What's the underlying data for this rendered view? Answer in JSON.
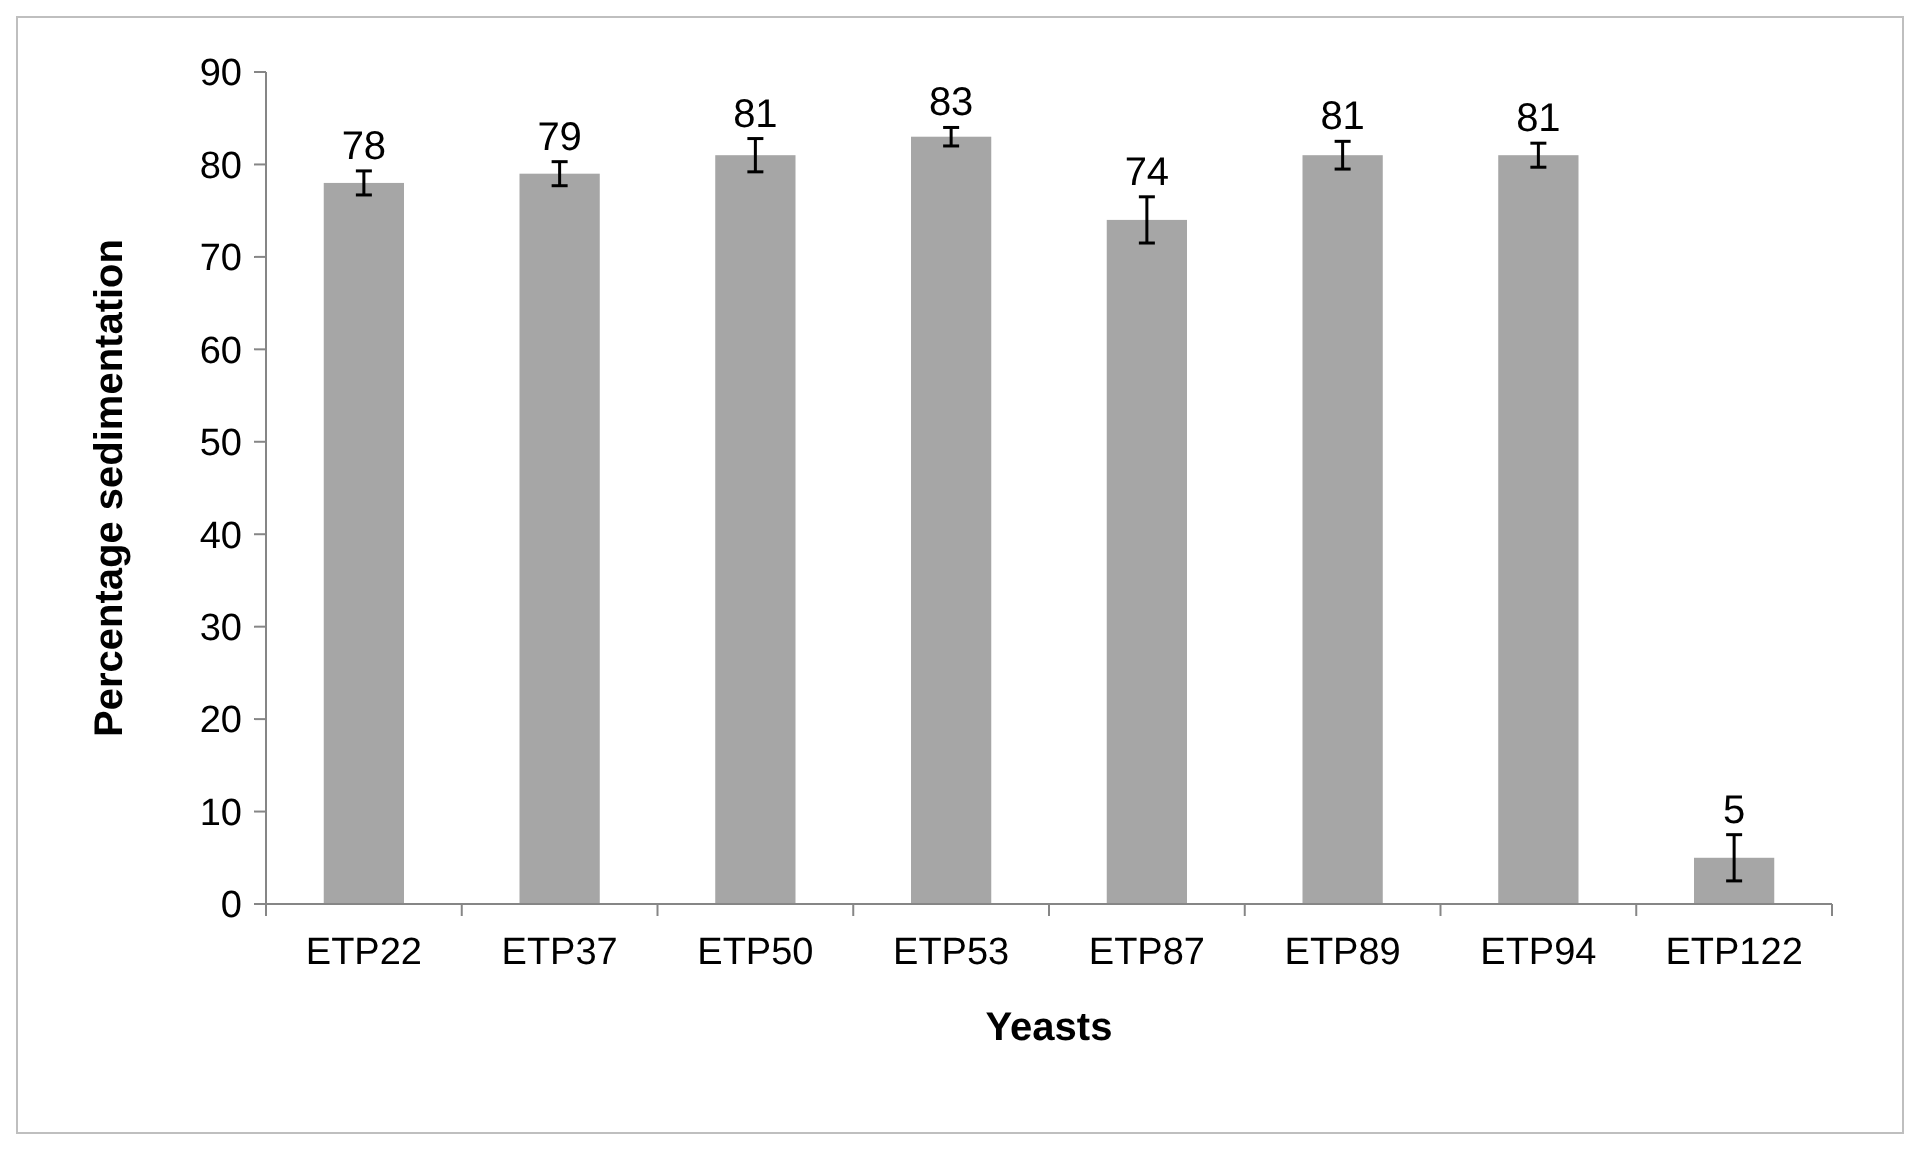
{
  "chart_data": {
    "type": "bar",
    "xlabel": "Yeasts",
    "ylabel": "Percentage sedimentation",
    "categories": [
      "ETP22",
      "ETP37",
      "ETP50",
      "ETP53",
      "ETP87",
      "ETP89",
      "ETP94",
      "ETP122"
    ],
    "values": [
      78,
      79,
      81,
      83,
      74,
      81,
      81,
      5
    ],
    "errors": [
      1.3,
      1.3,
      1.8,
      1.0,
      2.5,
      1.5,
      1.3,
      2.5
    ],
    "color": "#a6a6a6",
    "data_labels": true,
    "ylim": [
      0,
      90
    ],
    "yticks": [
      0,
      10,
      20,
      30,
      40,
      50,
      60,
      70,
      80,
      90
    ],
    "grid": false
  }
}
